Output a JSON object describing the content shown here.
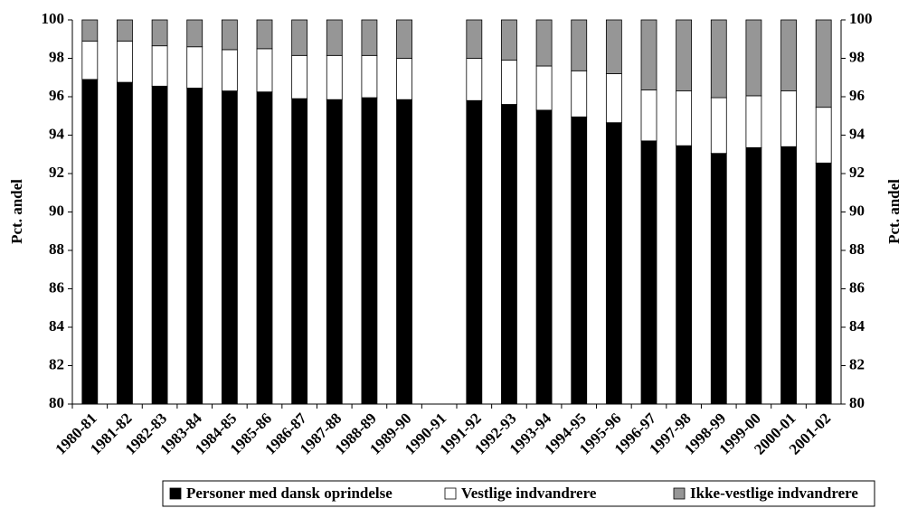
{
  "chart_data": {
    "type": "stacked_bar",
    "categories": [
      "1980-81",
      "1981-82",
      "1982-83",
      "1983-84",
      "1984-85",
      "1985-86",
      "1986-87",
      "1987-88",
      "1988-89",
      "1989-90",
      "1990-91",
      "1991-92",
      "1992-93",
      "1993-94",
      "1994-95",
      "1995-96",
      "1996-97",
      "1997-98",
      "1998-99",
      "1999-00",
      "2000-01",
      "2001-02"
    ],
    "series": [
      {
        "name": "Personer med dansk oprindelse",
        "color": "#000000",
        "values": [
          96.9,
          96.75,
          96.55,
          96.45,
          96.3,
          96.25,
          95.9,
          95.85,
          95.95,
          95.85,
          null,
          95.8,
          95.6,
          95.3,
          94.95,
          94.65,
          93.7,
          93.45,
          93.05,
          93.35,
          93.4,
          92.55
        ]
      },
      {
        "name": "Vestlige indvandrere",
        "color": "#ffffff",
        "values": [
          2.0,
          2.15,
          2.1,
          2.15,
          2.15,
          2.25,
          2.25,
          2.3,
          2.2,
          2.15,
          null,
          2.2,
          2.3,
          2.3,
          2.4,
          2.55,
          2.65,
          2.85,
          2.9,
          2.7,
          2.9,
          2.9
        ]
      },
      {
        "name": "Ikke-vestlige indvandrere",
        "color": "#969696",
        "values": [
          1.1,
          1.1,
          1.35,
          1.4,
          1.55,
          1.5,
          1.85,
          1.85,
          1.85,
          2.0,
          null,
          2.0,
          2.1,
          2.4,
          2.65,
          2.8,
          3.65,
          3.7,
          4.05,
          3.95,
          3.7,
          4.55
        ]
      }
    ],
    "y_label": "Pct. andel",
    "y2_label": "Pct. andel",
    "ylim": [
      80,
      100
    ],
    "yticks": [
      80,
      82,
      84,
      86,
      88,
      90,
      92,
      94,
      96,
      98,
      100
    ],
    "y2lim": [
      80,
      100
    ],
    "y2ticks": [
      80,
      82,
      84,
      86,
      88,
      90,
      92,
      94,
      96,
      98,
      100
    ]
  }
}
